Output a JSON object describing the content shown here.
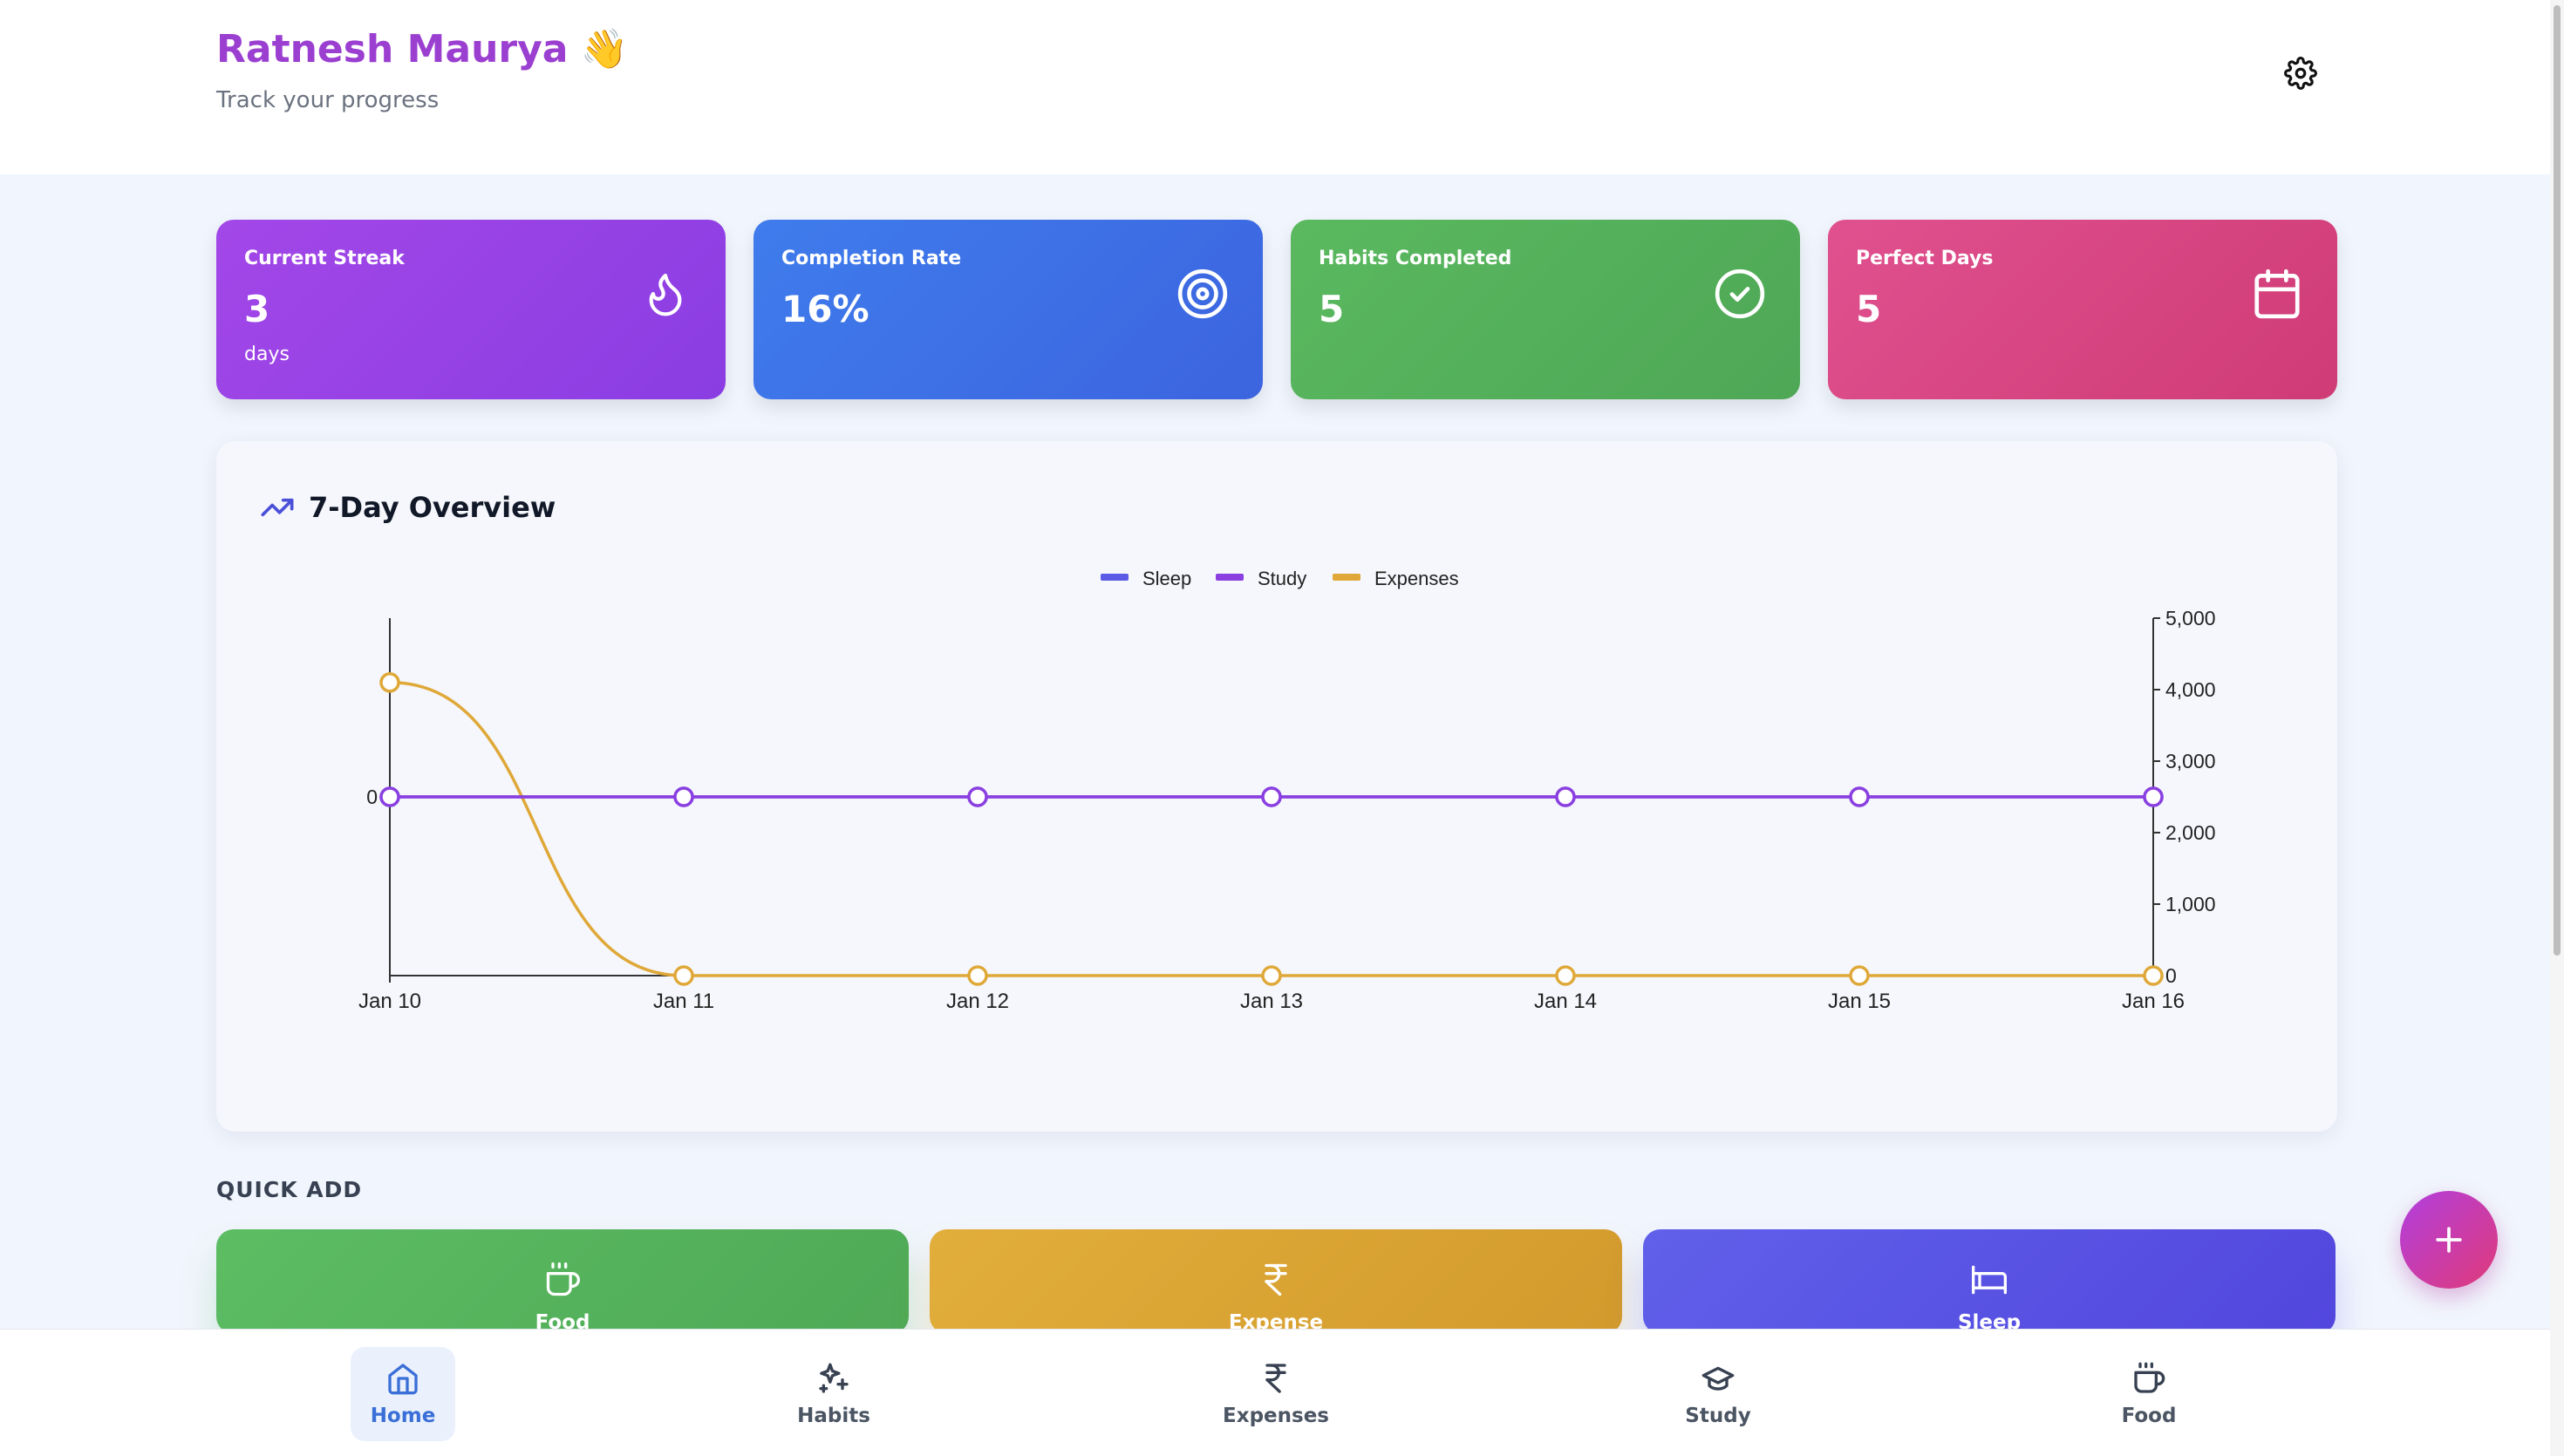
{
  "header": {
    "greeting": "Ratnesh Maurya",
    "wave_emoji": "👋",
    "subtitle": "Track your progress",
    "settings_icon": "gear-icon"
  },
  "stats": [
    {
      "label": "Current Streak",
      "value": "3",
      "unit": "days",
      "icon": "flame-icon",
      "color": "#9a43e6"
    },
    {
      "label": "Completion Rate",
      "value": "16%",
      "unit": "",
      "icon": "target-icon",
      "color": "#3e72e8"
    },
    {
      "label": "Habits Completed",
      "value": "5",
      "unit": "",
      "icon": "check-circle-icon",
      "color": "#55b35b"
    },
    {
      "label": "Perfect Days",
      "value": "5",
      "unit": "",
      "icon": "calendar-icon",
      "color": "#d94684"
    }
  ],
  "overview": {
    "title": "7-Day Overview",
    "icon": "trending-up-icon"
  },
  "chart_data": {
    "type": "line",
    "categories": [
      "Jan 10",
      "Jan 11",
      "Jan 12",
      "Jan 13",
      "Jan 14",
      "Jan 15",
      "Jan 16"
    ],
    "series": [
      {
        "name": "Sleep",
        "axis": "left",
        "color": "#5b5be6",
        "values": [
          0,
          0,
          0,
          0,
          0,
          0,
          0
        ]
      },
      {
        "name": "Study",
        "axis": "left",
        "color": "#8b3fe0",
        "values": [
          0,
          0,
          0,
          0,
          0,
          0,
          0
        ]
      },
      {
        "name": "Expenses",
        "axis": "right",
        "color": "#dfa838",
        "values": [
          4100,
          0,
          0,
          0,
          0,
          0,
          0
        ]
      }
    ],
    "left_axis": {
      "ticks": [
        "0"
      ]
    },
    "right_axis": {
      "ylim": [
        0,
        5000
      ],
      "ticks": [
        "0",
        "1,000",
        "2,000",
        "3,000",
        "4,000",
        "5,000"
      ]
    },
    "legend_position": "top-center",
    "grid": false
  },
  "quick_add": {
    "heading": "QUICK ADD",
    "items": [
      {
        "label": "Food",
        "icon": "coffee-icon",
        "color": "#55b35b"
      },
      {
        "label": "Expense",
        "icon": "rupee-icon",
        "color": "#daa434"
      },
      {
        "label": "Sleep",
        "icon": "bed-icon",
        "color": "#5953e4"
      }
    ]
  },
  "fab": {
    "icon": "plus-icon"
  },
  "nav": [
    {
      "label": "Home",
      "icon": "home-icon",
      "active": true
    },
    {
      "label": "Habits",
      "icon": "sparkles-icon",
      "active": false
    },
    {
      "label": "Expenses",
      "icon": "rupee-icon",
      "active": false
    },
    {
      "label": "Study",
      "icon": "graduation-cap-icon",
      "active": false
    },
    {
      "label": "Food",
      "icon": "coffee-icon",
      "active": false
    }
  ]
}
